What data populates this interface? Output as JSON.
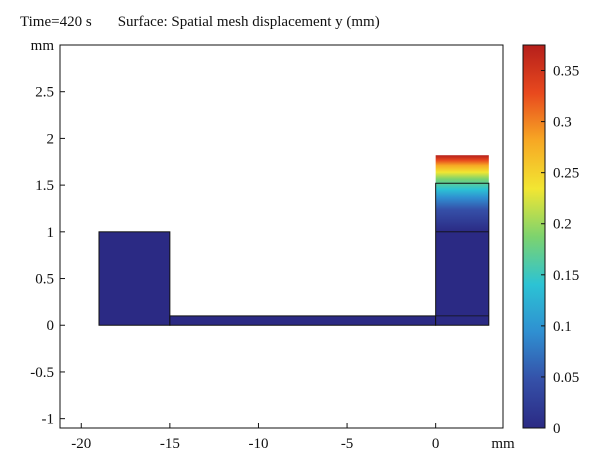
{
  "header": {
    "time_label": "Time=420 s",
    "surface_label": "Surface: Spatial mesh displacement y (mm)"
  },
  "chart_data": {
    "type": "heatmap",
    "title": "Surface: Spatial mesh displacement y (mm)",
    "subtitle": "Time=420 s",
    "xlabel": "mm",
    "ylabel": "mm",
    "xlim": [
      -21.2,
      3.8
    ],
    "ylim": [
      -1.1,
      3.0
    ],
    "x_ticks": [
      -20,
      -15,
      -10,
      -5,
      0
    ],
    "y_ticks": [
      2.5,
      2,
      1.5,
      1,
      0.5,
      0,
      -0.5,
      -1
    ],
    "x_tick_labels": [
      "-20",
      "-15",
      "-10",
      "-5",
      "0"
    ],
    "y_tick_labels": [
      "2.5",
      "2",
      "1.5",
      "1",
      "0.5",
      "0",
      "-0.5",
      "-1"
    ],
    "grid": false,
    "geometry": {
      "left_block": {
        "x": [
          -19,
          -15
        ],
        "y": [
          0,
          1
        ]
      },
      "channel": {
        "x": [
          -15,
          0
        ],
        "y": [
          0,
          0.1
        ]
      },
      "right_column": {
        "x": [
          0,
          3
        ],
        "y": [
          0,
          1.52
        ]
      },
      "right_column_deformed_top_y": 1.82,
      "right_column_inner_lines_y": [
        0.1,
        1.0
      ]
    },
    "colorbar": {
      "min": 0,
      "max": 0.375,
      "ticks": [
        0,
        0.05,
        0.1,
        0.15,
        0.2,
        0.25,
        0.3,
        0.35
      ],
      "tick_labels": [
        "0",
        "0.05",
        "0.1",
        "0.15",
        "0.2",
        "0.25",
        "0.3",
        "0.35"
      ],
      "colormap": [
        "#2b2a84",
        "#3550a8",
        "#2f8fd1",
        "#2cc3d4",
        "#7dd36e",
        "#f2e632",
        "#f7a824",
        "#e8491e",
        "#b51f1b"
      ]
    },
    "field_values": {
      "left_block": 0,
      "channel": 0,
      "right_column_bottom": 0,
      "right_column_top": 0.37
    }
  }
}
